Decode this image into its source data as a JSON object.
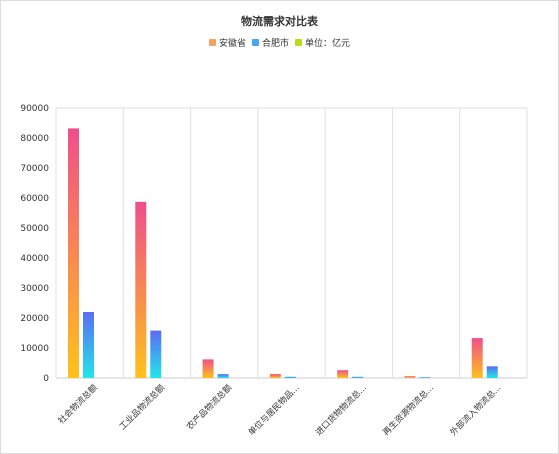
{
  "chart_data": {
    "type": "bar",
    "title": "物流需求对比表",
    "categories": [
      "社会物流总额",
      "工业品物流总额",
      "农产品物流总额",
      "单位与居民物品...",
      "进口货物物流总...",
      "再生资源物流总...",
      "外部流入物流总..."
    ],
    "series": [
      {
        "name": "安徽省",
        "values": [
          83200,
          58700,
          6200,
          1300,
          2600,
          600,
          13300
        ],
        "color_top": "#f04e8a",
        "color_bottom": "#ffc21c"
      },
      {
        "name": "合肥市",
        "values": [
          22000,
          15800,
          1300,
          400,
          400,
          250,
          3900
        ],
        "color_top": "#5a6df5",
        "color_bottom": "#22e6e9"
      },
      {
        "name": "单位：亿元",
        "values": [
          0,
          0,
          0,
          0,
          0,
          0,
          0
        ],
        "color_top": "#d9e020",
        "color_bottom": "#8fd11a"
      }
    ],
    "ylim": [
      0,
      90000
    ],
    "yticks": [
      0,
      10000,
      20000,
      30000,
      40000,
      50000,
      60000,
      70000,
      80000,
      90000
    ],
    "grid": true,
    "legend_position": "top-center"
  },
  "legend": [
    {
      "label": "安徽省",
      "color": "#f5a15f"
    },
    {
      "label": "合肥市",
      "color": "#4ba6f1"
    },
    {
      "label": "单位：亿元",
      "color": "#b8dc1a"
    }
  ]
}
